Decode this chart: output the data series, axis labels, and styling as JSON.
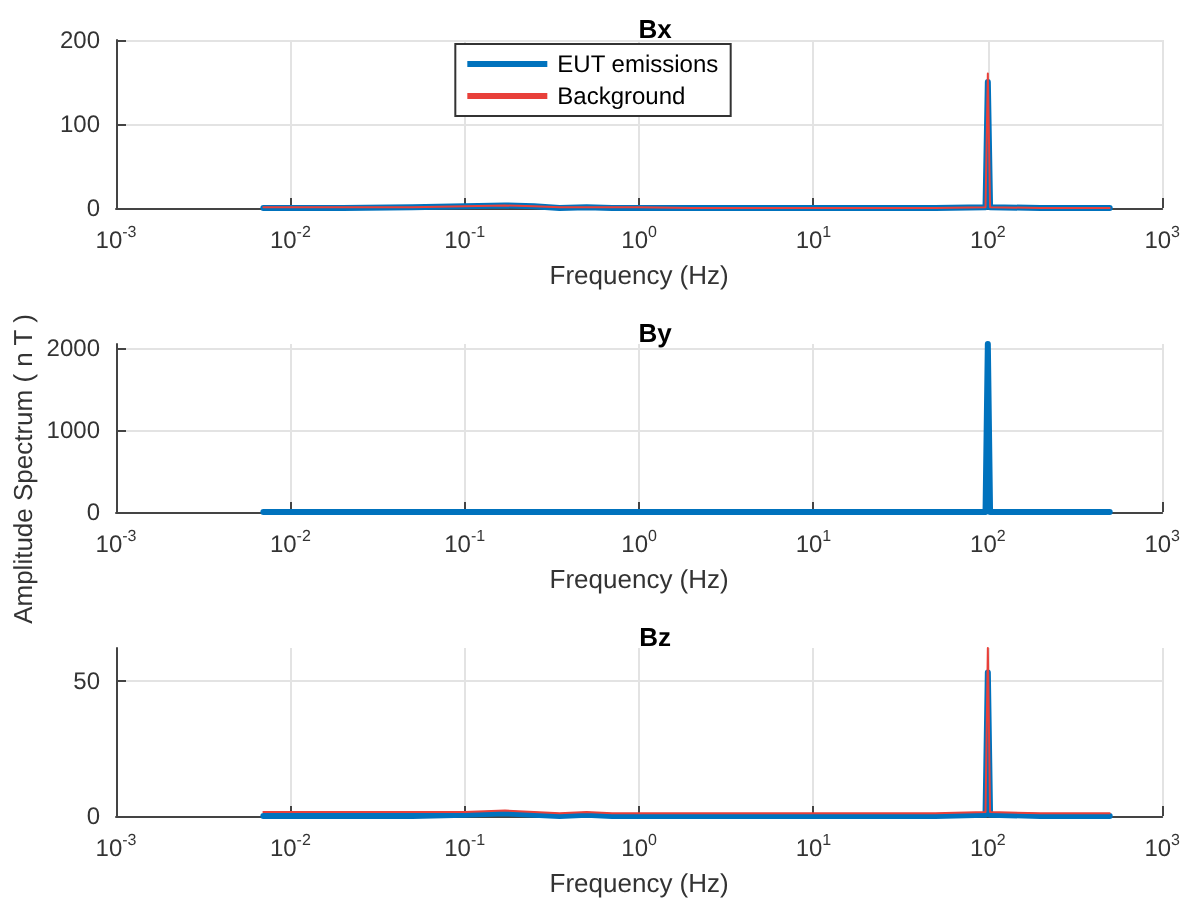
{
  "chart_data": [
    {
      "type": "line",
      "title": "Bx",
      "xlabel": "Frequency (Hz)",
      "log": "x",
      "grid": true,
      "legend": "top",
      "line_style": "solid",
      "marker": "none",
      "xlim": [
        0.001,
        1000
      ],
      "xticks": [
        {
          "value": 0.001,
          "label": "10$^{-3}$"
        },
        {
          "value": 0.01,
          "label": "10$^{-2}$"
        },
        {
          "value": 0.1,
          "label": "10$^{-1}$"
        },
        {
          "value": 1,
          "label": "10$^{0}$"
        },
        {
          "value": 10,
          "label": "10$^{1}$"
        },
        {
          "value": 100,
          "label": "10$^{2}$"
        },
        {
          "value": 1000,
          "label": "10$^{3}$"
        }
      ],
      "ylim": [
        0,
        200
      ],
      "yticks": [
        0,
        100,
        200
      ],
      "series": [
        {
          "name": "EUT emissions",
          "color": "#0072bd",
          "x": [
            0.007,
            0.02,
            0.05,
            0.1,
            0.17,
            0.25,
            0.35,
            0.5,
            0.7,
            1,
            2,
            10,
            50,
            97,
            100,
            103,
            200,
            500
          ],
          "values": [
            0,
            0,
            1,
            2,
            3,
            2,
            0,
            1,
            0,
            0,
            0,
            0,
            0,
            1,
            150,
            1,
            0,
            0
          ]
        },
        {
          "name": "Background",
          "color": "#e8403a",
          "x": [
            0.007,
            0.02,
            0.05,
            0.1,
            0.17,
            0.25,
            0.35,
            0.5,
            0.7,
            1,
            2,
            10,
            50,
            97,
            100,
            103,
            200,
            500
          ],
          "values": [
            1,
            1,
            1,
            2,
            3,
            2,
            1,
            1,
            1,
            1,
            0,
            0,
            0,
            1,
            160,
            1,
            0,
            0
          ]
        }
      ]
    },
    {
      "type": "line",
      "title": "By",
      "xlabel": "Frequency (Hz)",
      "ylabel": "Amplitude Spectrum ( n T )",
      "log": "x",
      "grid": true,
      "line_style": "solid",
      "marker": "none",
      "xlim": [
        0.001,
        1000
      ],
      "xticks": [
        {
          "value": 0.001,
          "label": "10$^{-3}$"
        },
        {
          "value": 0.01,
          "label": "10$^{-2}$"
        },
        {
          "value": 0.1,
          "label": "10$^{-1}$"
        },
        {
          "value": 1,
          "label": "10$^{0}$"
        },
        {
          "value": 10,
          "label": "10$^{1}$"
        },
        {
          "value": 100,
          "label": "10$^{2}$"
        },
        {
          "value": 1000,
          "label": "10$^{3}$"
        }
      ],
      "ylim": [
        0,
        2050
      ],
      "yticks": [
        0,
        1000,
        2000
      ],
      "series": [
        {
          "color": "#0072bd",
          "x": [
            0.007,
            0.1,
            1,
            10,
            97,
            100,
            103,
            500
          ],
          "values": [
            0,
            0,
            0,
            0,
            0,
            2050,
            0,
            0
          ]
        }
      ]
    },
    {
      "type": "line",
      "title": "Bz",
      "xlabel": "Frequency (Hz)",
      "log": "x",
      "grid": true,
      "line_style": "solid",
      "marker": "none",
      "xlim": [
        0.001,
        1000
      ],
      "xticks": [
        {
          "value": 0.001,
          "label": "10$^{-3}$"
        },
        {
          "value": 0.01,
          "label": "10$^{-2}$"
        },
        {
          "value": 0.1,
          "label": "10$^{-1}$"
        },
        {
          "value": 1,
          "label": "10$^{0}$"
        },
        {
          "value": 10,
          "label": "10$^{1}$"
        },
        {
          "value": 100,
          "label": "10$^{2}$"
        },
        {
          "value": 1000,
          "label": "10$^{3}$"
        }
      ],
      "ylim": [
        0,
        62
      ],
      "yticks": [
        0,
        50
      ],
      "series": [
        {
          "color": "#0072bd",
          "x": [
            0.007,
            0.02,
            0.05,
            0.1,
            0.17,
            0.25,
            0.35,
            0.5,
            0.7,
            1,
            2,
            10,
            50,
            97,
            100,
            103,
            200,
            500
          ],
          "values": [
            0,
            0,
            0,
            0.5,
            1,
            0.5,
            0,
            0.5,
            0,
            0,
            0,
            0,
            0,
            0.5,
            53,
            0.5,
            0,
            0
          ]
        },
        {
          "color": "#e8403a",
          "x": [
            0.007,
            0.02,
            0.05,
            0.1,
            0.17,
            0.25,
            0.35,
            0.5,
            0.7,
            1,
            2,
            10,
            50,
            97,
            100,
            103,
            200,
            500
          ],
          "values": [
            1.5,
            1.5,
            1.5,
            1.5,
            2,
            1.5,
            1,
            1.5,
            1,
            1,
            1,
            1,
            1,
            1.5,
            62,
            1.5,
            1,
            1
          ]
        }
      ]
    }
  ]
}
